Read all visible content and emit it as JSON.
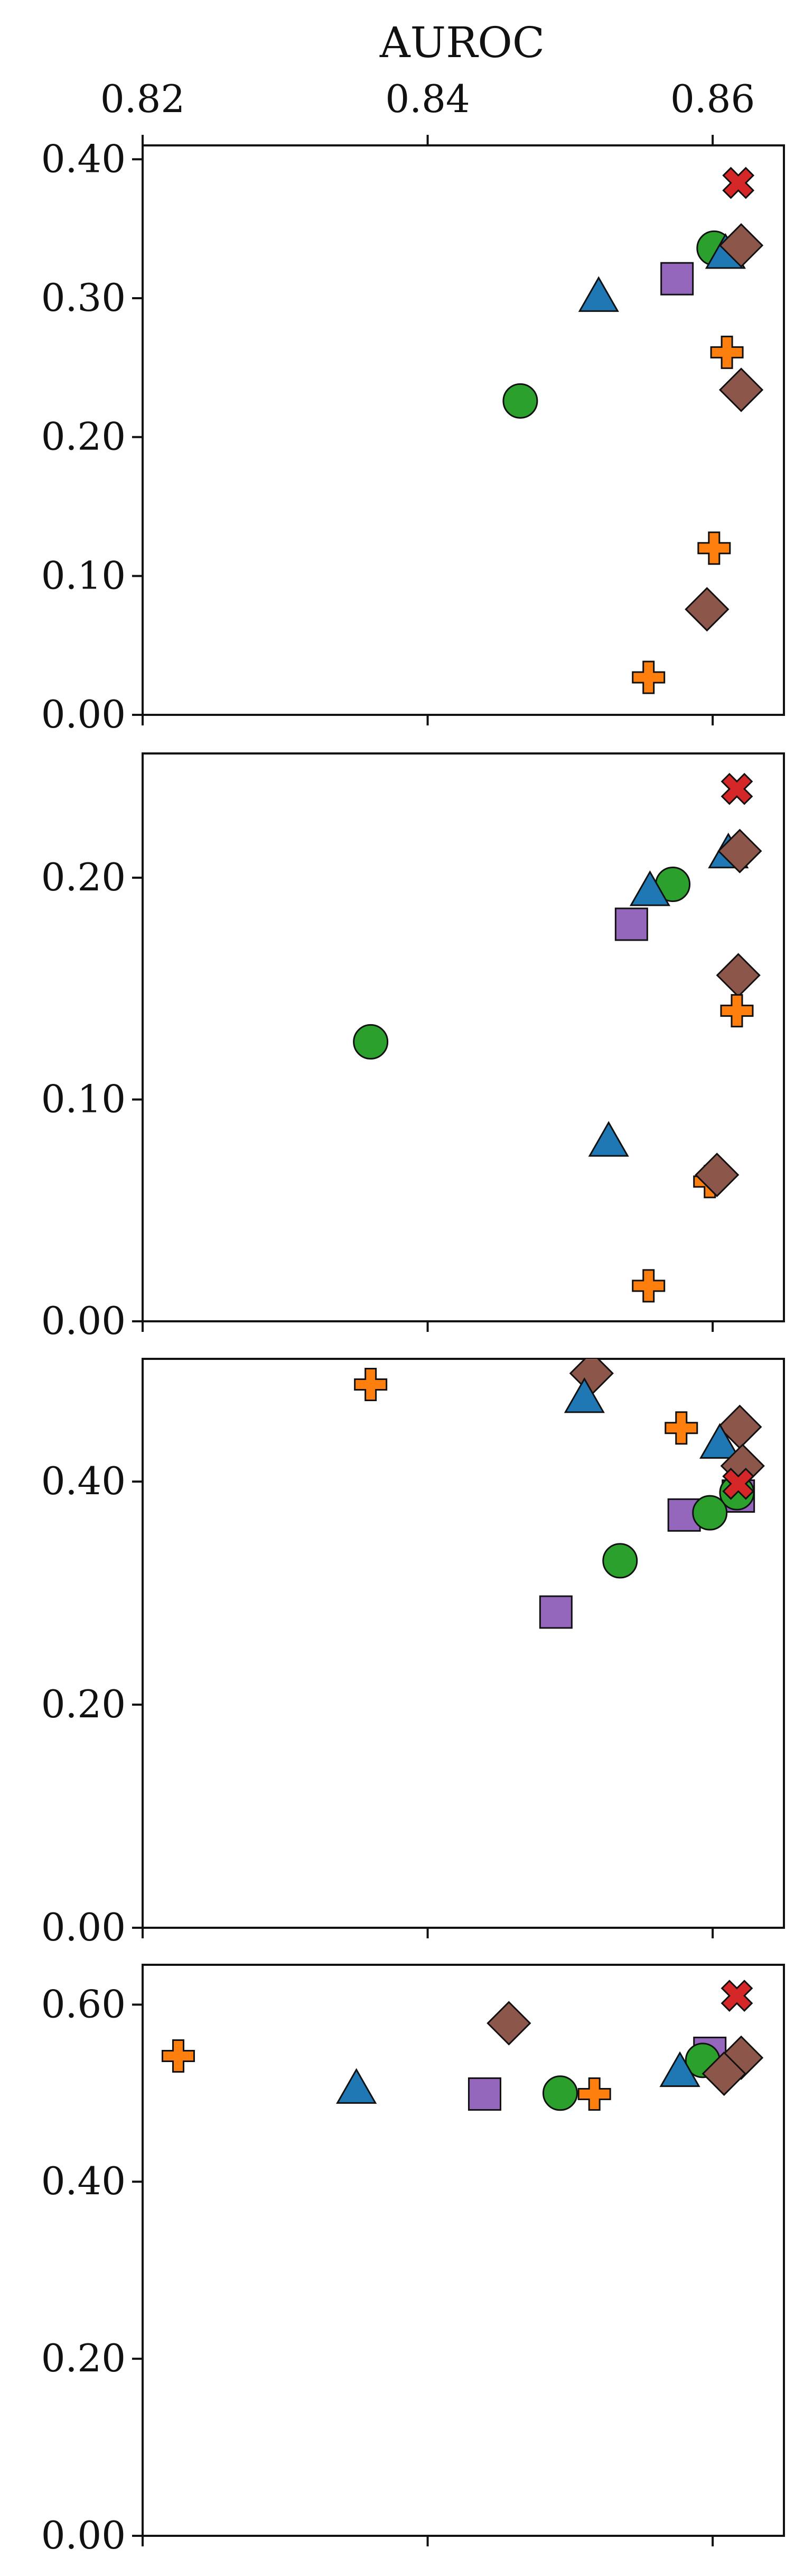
{
  "chart_data": {
    "type": "scatter",
    "xlabel": "AUROC",
    "x_axis_position": "top",
    "xlim": [
      0.82,
      0.865
    ],
    "xticks": [
      0.82,
      0.84,
      0.86
    ],
    "xtick_labels": [
      "0.82",
      "0.84",
      "0.86"
    ],
    "grid": false,
    "colors": {
      "blue": "#1f77b4",
      "orange": "#ff7f0e",
      "green": "#2ca02c",
      "red": "#d62728",
      "purple": "#9467bd",
      "brown": "#8c564b"
    },
    "panels": [
      {
        "ylim": [
          0,
          0.41
        ],
        "yticks": [
          0.0,
          0.1,
          0.2,
          0.3,
          0.4
        ],
        "ytick_labels": [
          "0.00",
          "0.10",
          "0.20",
          "0.30",
          "0.40"
        ],
        "points": [
          {
            "x": 0.8618,
            "y": 0.383,
            "marker": "x-mark",
            "color": "#d62728"
          },
          {
            "x": 0.8601,
            "y": 0.336,
            "marker": "circle",
            "color": "#2ca02c"
          },
          {
            "x": 0.8609,
            "y": 0.332,
            "marker": "triangle",
            "color": "#1f77b4"
          },
          {
            "x": 0.862,
            "y": 0.338,
            "marker": "diamond",
            "color": "#8c564b"
          },
          {
            "x": 0.8575,
            "y": 0.314,
            "marker": "square",
            "color": "#9467bd"
          },
          {
            "x": 0.852,
            "y": 0.301,
            "marker": "triangle",
            "color": "#1f77b4"
          },
          {
            "x": 0.861,
            "y": 0.261,
            "marker": "plus",
            "color": "#ff7f0e"
          },
          {
            "x": 0.862,
            "y": 0.234,
            "marker": "diamond",
            "color": "#8c564b"
          },
          {
            "x": 0.8465,
            "y": 0.226,
            "marker": "circle",
            "color": "#2ca02c"
          },
          {
            "x": 0.8601,
            "y": 0.12,
            "marker": "plus",
            "color": "#ff7f0e"
          },
          {
            "x": 0.8596,
            "y": 0.076,
            "marker": "diamond",
            "color": "#8c564b"
          },
          {
            "x": 0.8555,
            "y": 0.027,
            "marker": "plus",
            "color": "#ff7f0e"
          }
        ]
      },
      {
        "ylim": [
          0,
          0.256
        ],
        "yticks": [
          0.0,
          0.1,
          0.2
        ],
        "ytick_labels": [
          "0.00",
          "0.10",
          "0.20"
        ],
        "points": [
          {
            "x": 0.8617,
            "y": 0.24,
            "marker": "x-mark",
            "color": "#d62728"
          },
          {
            "x": 0.8611,
            "y": 0.211,
            "marker": "triangle",
            "color": "#1f77b4"
          },
          {
            "x": 0.8619,
            "y": 0.212,
            "marker": "diamond",
            "color": "#8c564b"
          },
          {
            "x": 0.8572,
            "y": 0.197,
            "marker": "circle",
            "color": "#2ca02c"
          },
          {
            "x": 0.8556,
            "y": 0.194,
            "marker": "triangle",
            "color": "#1f77b4"
          },
          {
            "x": 0.8543,
            "y": 0.179,
            "marker": "square",
            "color": "#9467bd"
          },
          {
            "x": 0.8618,
            "y": 0.156,
            "marker": "diamond",
            "color": "#8c564b"
          },
          {
            "x": 0.8617,
            "y": 0.14,
            "marker": "plus",
            "color": "#ff7f0e"
          },
          {
            "x": 0.836,
            "y": 0.126,
            "marker": "circle",
            "color": "#2ca02c"
          },
          {
            "x": 0.8527,
            "y": 0.081,
            "marker": "triangle",
            "color": "#1f77b4"
          },
          {
            "x": 0.8598,
            "y": 0.063,
            "marker": "plus",
            "color": "#ff7f0e"
          },
          {
            "x": 0.8603,
            "y": 0.066,
            "marker": "diamond",
            "color": "#8c564b"
          },
          {
            "x": 0.8555,
            "y": 0.016,
            "marker": "plus",
            "color": "#ff7f0e"
          }
        ]
      },
      {
        "ylim": [
          0,
          0.51
        ],
        "yticks": [
          0.0,
          0.2,
          0.4
        ],
        "ytick_labels": [
          "0.00",
          "0.20",
          "0.40"
        ],
        "points": [
          {
            "x": 0.8515,
            "y": 0.497,
            "marker": "diamond",
            "color": "#8c564b"
          },
          {
            "x": 0.836,
            "y": 0.487,
            "marker": "plus",
            "color": "#ff7f0e"
          },
          {
            "x": 0.851,
            "y": 0.475,
            "marker": "triangle",
            "color": "#1f77b4"
          },
          {
            "x": 0.8578,
            "y": 0.448,
            "marker": "plus",
            "color": "#ff7f0e"
          },
          {
            "x": 0.8619,
            "y": 0.449,
            "marker": "diamond",
            "color": "#8c564b"
          },
          {
            "x": 0.8605,
            "y": 0.434,
            "marker": "triangle",
            "color": "#1f77b4"
          },
          {
            "x": 0.8621,
            "y": 0.414,
            "marker": "diamond",
            "color": "#8c564b"
          },
          {
            "x": 0.8618,
            "y": 0.387,
            "marker": "square",
            "color": "#9467bd"
          },
          {
            "x": 0.8617,
            "y": 0.39,
            "marker": "circle",
            "color": "#2ca02c"
          },
          {
            "x": 0.8618,
            "y": 0.398,
            "marker": "x-mark",
            "color": "#d62728"
          },
          {
            "x": 0.858,
            "y": 0.37,
            "marker": "square",
            "color": "#9467bd"
          },
          {
            "x": 0.8598,
            "y": 0.372,
            "marker": "circle",
            "color": "#2ca02c"
          },
          {
            "x": 0.8535,
            "y": 0.329,
            "marker": "circle",
            "color": "#2ca02c"
          },
          {
            "x": 0.849,
            "y": 0.283,
            "marker": "square",
            "color": "#9467bd"
          }
        ]
      },
      {
        "ylim": [
          0,
          0.645
        ],
        "yticks": [
          0.0,
          0.2,
          0.4,
          0.6
        ],
        "ytick_labels": [
          "0.00",
          "0.20",
          "0.40",
          "0.60"
        ],
        "points": [
          {
            "x": 0.8617,
            "y": 0.61,
            "marker": "x-mark",
            "color": "#d62728"
          },
          {
            "x": 0.8457,
            "y": 0.579,
            "marker": "diamond",
            "color": "#8c564b"
          },
          {
            "x": 0.8225,
            "y": 0.542,
            "marker": "plus",
            "color": "#ff7f0e"
          },
          {
            "x": 0.8598,
            "y": 0.545,
            "marker": "square",
            "color": "#9467bd"
          },
          {
            "x": 0.8593,
            "y": 0.537,
            "marker": "circle",
            "color": "#2ca02c"
          },
          {
            "x": 0.862,
            "y": 0.54,
            "marker": "diamond",
            "color": "#8c564b"
          },
          {
            "x": 0.8577,
            "y": 0.524,
            "marker": "triangle",
            "color": "#1f77b4"
          },
          {
            "x": 0.8608,
            "y": 0.522,
            "marker": "diamond",
            "color": "#8c564b"
          },
          {
            "x": 0.835,
            "y": 0.505,
            "marker": "triangle",
            "color": "#1f77b4"
          },
          {
            "x": 0.844,
            "y": 0.499,
            "marker": "square",
            "color": "#9467bd"
          },
          {
            "x": 0.8493,
            "y": 0.5,
            "marker": "circle",
            "color": "#2ca02c"
          },
          {
            "x": 0.8517,
            "y": 0.499,
            "marker": "plus",
            "color": "#ff7f0e"
          }
        ]
      }
    ]
  }
}
